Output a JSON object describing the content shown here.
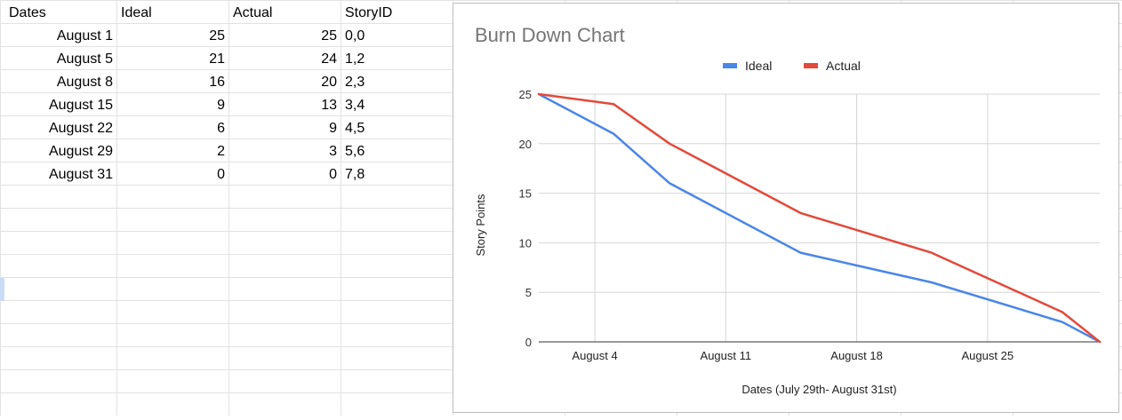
{
  "sheet": {
    "headers": [
      "Dates",
      "Ideal",
      "Actual",
      "StoryID"
    ],
    "rows": [
      {
        "date": "August 1",
        "ideal": "25",
        "actual": "25",
        "story": "0,0"
      },
      {
        "date": "August 5",
        "ideal": "21",
        "actual": "24",
        "story": "1,2"
      },
      {
        "date": "August 8",
        "ideal": "16",
        "actual": "20",
        "story": "2,3"
      },
      {
        "date": "August 15",
        "ideal": "9",
        "actual": "13",
        "story": "3,4"
      },
      {
        "date": "August 22",
        "ideal": "6",
        "actual": "9",
        "story": "4,5"
      },
      {
        "date": "August 29",
        "ideal": "2",
        "actual": "3",
        "story": "5,6"
      },
      {
        "date": "August 31",
        "ideal": "0",
        "actual": "0",
        "story": "7,8"
      }
    ]
  },
  "chart_data": {
    "type": "line",
    "title": "Burn Down Chart",
    "xlabel": "Dates (July 29th- August 31st)",
    "ylabel": "Story Points",
    "x": [
      "2023-08-01",
      "2023-08-05",
      "2023-08-08",
      "2023-08-15",
      "2023-08-22",
      "2023-08-29",
      "2023-08-31"
    ],
    "x_ticks": [
      "August 4",
      "August 11",
      "August 18",
      "August 25"
    ],
    "x_tick_values": [
      "2023-08-04",
      "2023-08-11",
      "2023-08-18",
      "2023-08-25"
    ],
    "xlim": [
      "2023-08-01",
      "2023-08-31"
    ],
    "ylim": [
      0,
      25
    ],
    "y_ticks": [
      0,
      5,
      10,
      15,
      20,
      25
    ],
    "grid": true,
    "legend_position": "top",
    "series": [
      {
        "name": "Ideal",
        "color": "#4a86e8",
        "values": [
          25,
          21,
          16,
          9,
          6,
          2,
          0
        ]
      },
      {
        "name": "Actual",
        "color": "#e24a3b",
        "values": [
          25,
          24,
          20,
          13,
          9,
          3,
          0
        ]
      }
    ]
  }
}
